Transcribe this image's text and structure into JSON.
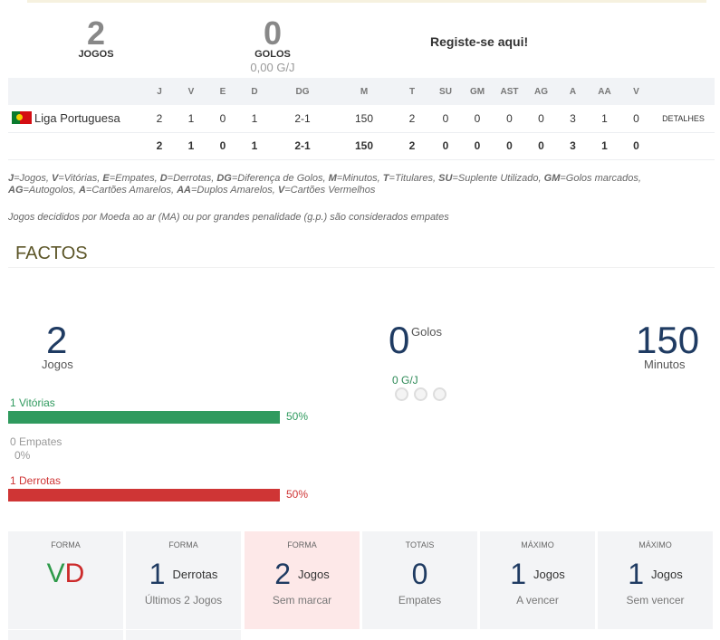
{
  "summary": {
    "games_value": "2",
    "games_label": "JOGOS",
    "goals_value": "0",
    "goals_label": "GOLOS",
    "goals_per_game": "0,00 G/J",
    "register_link": "Registe-se aqui!"
  },
  "table": {
    "headers": [
      "J",
      "V",
      "E",
      "D",
      "DG",
      "M",
      "T",
      "SU",
      "GM",
      "AST",
      "AG",
      "A",
      "AA",
      "V"
    ],
    "row": {
      "competition": "Liga Portuguesa",
      "values": [
        "2",
        "1",
        "0",
        "1",
        "2-1",
        "150",
        "2",
        "0",
        "0",
        "0",
        "0",
        "3",
        "1",
        "0"
      ],
      "details": "DETALHES"
    },
    "total": {
      "values": [
        "2",
        "1",
        "0",
        "1",
        "2-1",
        "150",
        "2",
        "0",
        "0",
        "0",
        "0",
        "3",
        "1",
        "0"
      ]
    }
  },
  "legend": {
    "items": [
      [
        "J",
        "=Jogos, "
      ],
      [
        "V",
        "=Vitórias, "
      ],
      [
        "E",
        "=Empates, "
      ],
      [
        "D",
        "=Derrotas, "
      ],
      [
        "DG",
        "=Diferença de Golos, "
      ],
      [
        "M",
        "=Minutos, "
      ],
      [
        "T",
        "=Titulares, "
      ],
      [
        "SU",
        "=Suplente Utilizado, "
      ],
      [
        "GM",
        "=Golos marcados, "
      ],
      [
        "AG",
        "=Autogolos, "
      ],
      [
        "A",
        "=Cartões Amarelos, "
      ],
      [
        "AA",
        "=Duplos Amarelos, "
      ],
      [
        "V",
        "=Cartões Vermelhos"
      ]
    ],
    "note": "Jogos decididos por Moeda ao ar (MA) ou por grandes penalidade (g.p.) são considerados empates"
  },
  "facts": {
    "title": "FACTOS",
    "games_value": "2",
    "games_label": "Jogos",
    "goals_value": "0",
    "goals_label": "Golos",
    "goals_per_game": "0 G/J",
    "minutes_value": "150",
    "minutes_label": "Minutos",
    "wins_label": "1 Vitórias",
    "wins_pct": "50%",
    "wins_fraction": 0.5,
    "draws_label": "0 Empates",
    "draws_pct": "0%",
    "draws_fraction": 0,
    "losses_label": "1 Derrotas",
    "losses_pct": "50%",
    "losses_fraction": 0.5
  },
  "cards": [
    {
      "title": "FORMA",
      "form": [
        "V",
        "D"
      ]
    },
    {
      "title": "FORMA",
      "num": "1",
      "word": "Derrotas",
      "sub": "Últimos 2 Jogos"
    },
    {
      "title": "FORMA",
      "num": "2",
      "word": "Jogos",
      "sub": "Sem marcar"
    },
    {
      "title": "TOTAIS",
      "num": "0",
      "word": "",
      "sub": "Empates"
    },
    {
      "title": "MÁXIMO",
      "num": "1",
      "word": "Jogos",
      "sub": "A vencer"
    },
    {
      "title": "MÁXIMO",
      "num": "1",
      "word": "Jogos",
      "sub": "Sem vencer"
    }
  ],
  "colors": {
    "win": "#2f9a5e",
    "loss": "#cf3535",
    "draw": "#999999",
    "highlight_card": "#fde8e8"
  }
}
